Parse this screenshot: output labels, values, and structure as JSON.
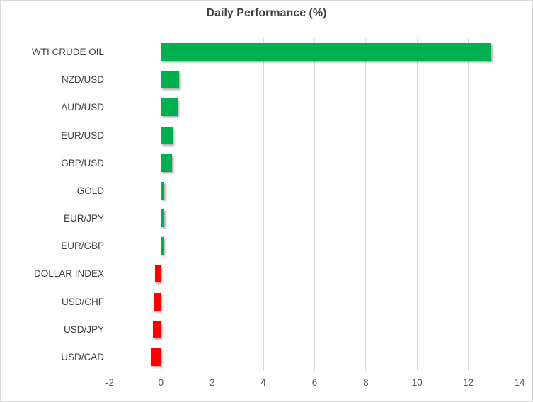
{
  "chart_data": {
    "type": "bar",
    "orientation": "horizontal",
    "title": "Daily Performance (%)",
    "categories": [
      "WTI CRUDE OIL",
      "NZD/USD",
      "AUD/USD",
      "EUR/USD",
      "GBP/USD",
      "GOLD",
      "EUR/JPY",
      "EUR/GBP",
      "DOLLAR INDEX",
      "USD/CHF",
      "USD/JPY",
      "USD/CAD"
    ],
    "values": [
      12.9,
      0.7,
      0.65,
      0.45,
      0.42,
      0.13,
      0.12,
      0.09,
      -0.22,
      -0.29,
      -0.31,
      -0.4
    ],
    "xlim": [
      -2,
      14
    ],
    "xticks": [
      -2,
      0,
      2,
      4,
      6,
      8,
      10,
      12,
      14
    ],
    "grid": "vertical",
    "legend": "none",
    "colors": {
      "positive": "#00B050",
      "negative": "#FF0000",
      "gridline": "#D9D9D9",
      "zero_axis": "#BFBFBF",
      "title_text": "#404040",
      "category_text": "#404040",
      "tick_text": "#595959",
      "frame_border": "#D9D9D9",
      "background": "#FFFFFF"
    }
  }
}
